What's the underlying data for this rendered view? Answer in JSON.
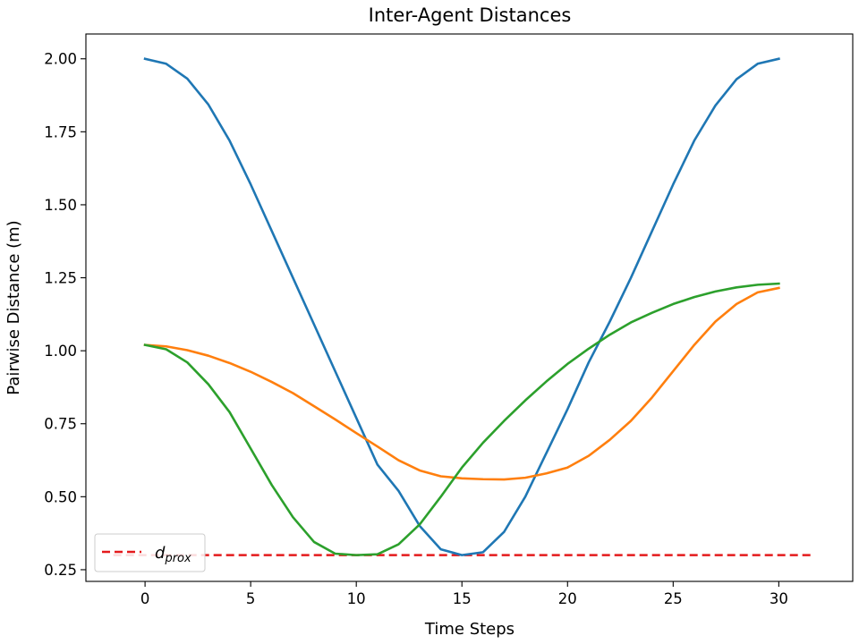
{
  "chart_data": {
    "type": "line",
    "title": "Inter-Agent Distances",
    "xlabel": "Time Steps",
    "ylabel": "Pairwise Distance (m)",
    "xlim": [
      -2.8,
      33.5
    ],
    "ylim": [
      0.21,
      2.085
    ],
    "xticks": [
      0,
      5,
      10,
      15,
      20,
      25,
      30
    ],
    "xtick_labels": [
      "0",
      "5",
      "10",
      "15",
      "20",
      "25",
      "30"
    ],
    "yticks": [
      0.25,
      0.5,
      0.75,
      1.0,
      1.25,
      1.5,
      1.75,
      2.0
    ],
    "ytick_labels": [
      "0.25",
      "0.50",
      "0.75",
      "1.00",
      "1.25",
      "1.50",
      "1.75",
      "2.00"
    ],
    "grid": false,
    "legend_position": "lower-left",
    "x": [
      0,
      1,
      2,
      3,
      4,
      5,
      6,
      7,
      8,
      9,
      10,
      11,
      12,
      13,
      14,
      15,
      16,
      17,
      18,
      19,
      20,
      21,
      22,
      23,
      24,
      25,
      26,
      27,
      28,
      29,
      30
    ],
    "series": [
      {
        "color": "#1f77b4",
        "values": [
          2.0,
          1.983,
          1.932,
          1.843,
          1.72,
          1.57,
          1.41,
          1.25,
          1.09,
          0.93,
          0.77,
          0.61,
          0.52,
          0.4,
          0.32,
          0.3,
          0.31,
          0.38,
          0.5,
          0.65,
          0.8,
          0.96,
          1.1,
          1.25,
          1.41,
          1.57,
          1.72,
          1.84,
          1.93,
          1.983,
          2.0
        ]
      },
      {
        "color": "#ff7f0e",
        "values": [
          1.02,
          1.015,
          1.002,
          0.983,
          0.958,
          0.928,
          0.893,
          0.855,
          0.81,
          0.765,
          0.718,
          0.672,
          0.625,
          0.59,
          0.57,
          0.563,
          0.56,
          0.559,
          0.565,
          0.58,
          0.6,
          0.64,
          0.695,
          0.76,
          0.84,
          0.93,
          1.02,
          1.1,
          1.16,
          1.2,
          1.215
        ]
      },
      {
        "color": "#2ca02c",
        "values": [
          1.02,
          1.005,
          0.96,
          0.885,
          0.79,
          0.665,
          0.54,
          0.43,
          0.345,
          0.305,
          0.3,
          0.303,
          0.337,
          0.405,
          0.5,
          0.6,
          0.685,
          0.76,
          0.83,
          0.895,
          0.955,
          1.007,
          1.055,
          1.097,
          1.13,
          1.16,
          1.184,
          1.203,
          1.217,
          1.226,
          1.23
        ]
      }
    ],
    "threshold": {
      "value": 0.3,
      "x_range": [
        -1.5,
        31.5
      ],
      "color": "#e41a1c",
      "style": "dashed",
      "legend_symbol": "d",
      "legend_subscript": "prox"
    }
  }
}
